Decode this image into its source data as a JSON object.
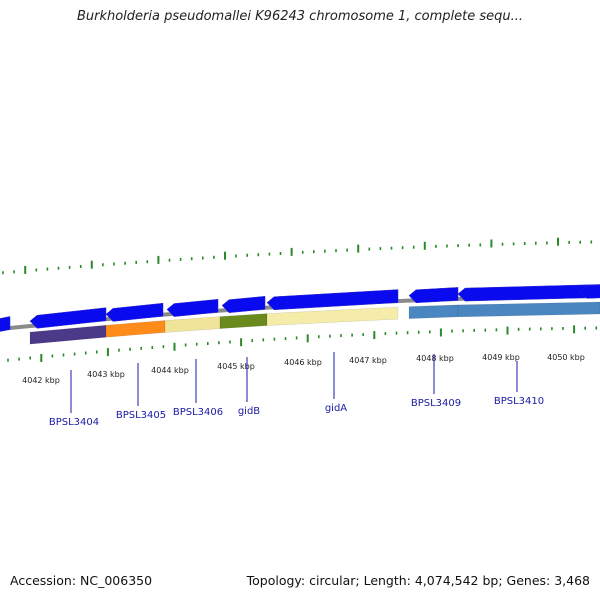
{
  "title": "Burkholderia pseudomallei K96243 chromosome 1, complete sequ...",
  "footer": {
    "accession": "Accession: NC_006350",
    "summary": "Topology: circular; Length: 4,074,542 bp; Genes: 3,468"
  },
  "colors": {
    "backbone": "#8a8a8a",
    "cds": "#0a0aee",
    "tick": "#2a8a2a",
    "label": "#1a1aa6"
  },
  "kbp_labels": [
    "4042 kbp",
    "4043 kbp",
    "4044 kbp",
    "4045 kbp",
    "4046 kbp",
    "4047 kbp",
    "4048 kbp",
    "4049 kbp",
    "4050 kbp"
  ],
  "genes": [
    {
      "name": "BPSL3404",
      "color": "#4a3a88"
    },
    {
      "name": "BPSL3405",
      "color": "#ff8c1a"
    },
    {
      "name": "BPSL3406",
      "color": "#efe49a"
    },
    {
      "name": "gidB",
      "color": "#6a8a1e"
    },
    {
      "name": "gidA",
      "color": "#f4eca8"
    },
    {
      "name": "BPSL3409",
      "color": "#4a86c0"
    },
    {
      "name": "BPSL3410",
      "color": "#4a86c0"
    }
  ]
}
